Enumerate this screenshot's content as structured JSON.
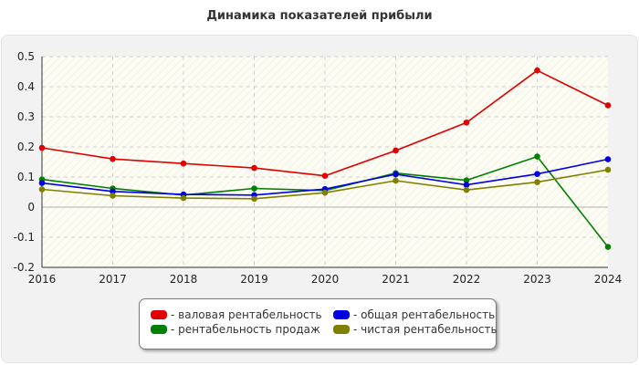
{
  "title": "Динамика показателей прибыли",
  "colors": {
    "gross": "#e00000",
    "total": "#0000e0",
    "sales": "#008000",
    "net": "#808000"
  },
  "legend": {
    "gross": "- валовая рентабельность",
    "total": "- общая рентабельность",
    "sales": "- рентабельность продаж",
    "net": "- чистая рентабельность"
  },
  "chart_data": {
    "type": "line",
    "title": "Динамика показателей прибыли",
    "xlabel": "",
    "ylabel": "",
    "x": [
      "2016",
      "2017",
      "2018",
      "2019",
      "2020",
      "2021",
      "2022",
      "2023",
      "2024"
    ],
    "ylim": [
      -0.2,
      0.5
    ],
    "yticks": [
      -0.2,
      -0.1,
      0,
      0.1,
      0.2,
      0.3,
      0.4,
      0.5
    ],
    "ytick_labels": [
      "-0.2",
      "-0.1",
      "0",
      "0.1",
      "0.2",
      "0.3",
      "0.4",
      "0.5"
    ],
    "grid": true,
    "legend_position": "bottom-center",
    "series": [
      {
        "key": "gross",
        "name": "- валовая рентабельность",
        "color": "#e00000",
        "values": [
          0.197,
          0.16,
          0.145,
          0.13,
          0.104,
          0.188,
          0.281,
          0.454,
          0.338
        ]
      },
      {
        "key": "sales",
        "name": "- рентабельность продаж",
        "color": "#008000",
        "values": [
          0.092,
          0.062,
          0.04,
          0.062,
          0.055,
          0.113,
          0.089,
          0.168,
          -0.132
        ]
      },
      {
        "key": "total",
        "name": "- общая рентабельность",
        "color": "#0000e0",
        "values": [
          0.08,
          0.052,
          0.042,
          0.04,
          0.06,
          0.109,
          0.074,
          0.11,
          0.159
        ]
      },
      {
        "key": "net",
        "name": "- чистая рентабельность",
        "color": "#808000",
        "values": [
          0.059,
          0.038,
          0.03,
          0.028,
          0.048,
          0.088,
          0.057,
          0.083,
          0.124
        ]
      }
    ]
  }
}
